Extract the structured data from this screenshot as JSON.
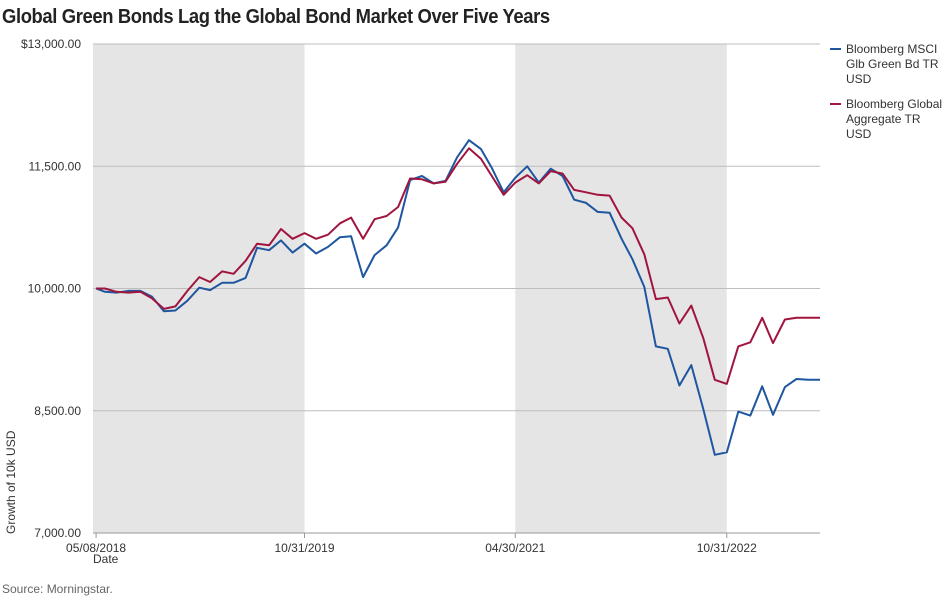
{
  "title": "Global Green Bonds Lag the Global Bond Market Over Five Years",
  "source": "Source: Morningstar.",
  "colors": {
    "green_bond": "#1f56a0",
    "aggregate": "#a0153e",
    "shade": "#e5e5e5",
    "grid": "#bdbdbd"
  },
  "chart_data": {
    "type": "line",
    "ylabel": "Growth of 10k USD",
    "xlabel": "Date",
    "ylim": [
      7000,
      13000
    ],
    "y_ticks": [
      7000,
      8500,
      10000,
      11500,
      13000
    ],
    "y_tick_labels": [
      "7,000.00",
      "8,500.00",
      "10,000.00",
      "11,500.00",
      "$13,000.00"
    ],
    "x_tick_labels": [
      "05/08/2018",
      "10/31/2019",
      "04/30/2021",
      "10/31/2022"
    ],
    "x_ticks": [
      "2018-05-08",
      "2019-10-31",
      "2021-04-30",
      "2022-10-31"
    ],
    "x_range": [
      "2018-04-30",
      "2023-06-30"
    ],
    "shaded_periods": [
      [
        "2018-04-30",
        "2019-10-31"
      ],
      [
        "2021-04-30",
        "2022-10-31"
      ]
    ],
    "grid": "horizontal",
    "legend_position": "right",
    "x": [
      "2018-05-08",
      "2018-05-31",
      "2018-06-30",
      "2018-07-31",
      "2018-08-31",
      "2018-09-30",
      "2018-10-31",
      "2018-11-30",
      "2018-12-31",
      "2019-01-31",
      "2019-02-28",
      "2019-03-31",
      "2019-04-30",
      "2019-05-31",
      "2019-06-30",
      "2019-07-31",
      "2019-08-31",
      "2019-09-30",
      "2019-10-31",
      "2019-11-30",
      "2019-12-31",
      "2020-01-31",
      "2020-02-29",
      "2020-03-31",
      "2020-04-30",
      "2020-05-31",
      "2020-06-30",
      "2020-07-31",
      "2020-08-31",
      "2020-09-30",
      "2020-10-31",
      "2020-11-30",
      "2020-12-31",
      "2021-01-31",
      "2021-02-28",
      "2021-03-31",
      "2021-04-30",
      "2021-05-31",
      "2021-06-30",
      "2021-07-31",
      "2021-08-31",
      "2021-09-30",
      "2021-10-31",
      "2021-11-30",
      "2021-12-31",
      "2022-01-31",
      "2022-02-28",
      "2022-03-31",
      "2022-04-30",
      "2022-05-31",
      "2022-06-30",
      "2022-07-31",
      "2022-08-31",
      "2022-09-30",
      "2022-10-31",
      "2022-11-30",
      "2022-12-31",
      "2023-01-31",
      "2023-02-28",
      "2023-03-31",
      "2023-04-30",
      "2023-05-31",
      "2023-06-30"
    ],
    "series": [
      {
        "name": "Bloomberg MSCI Glb Green Bd TR USD",
        "color": "#1f56a0",
        "values": [
          10000,
          9960,
          9950,
          9970,
          9970,
          9900,
          9720,
          9730,
          9850,
          10010,
          9980,
          10070,
          10070,
          10130,
          10500,
          10470,
          10590,
          10440,
          10550,
          10430,
          10510,
          10630,
          10640,
          10140,
          10410,
          10530,
          10750,
          11330,
          11380,
          11290,
          11320,
          11610,
          11820,
          11710,
          11480,
          11180,
          11360,
          11500,
          11300,
          11470,
          11380,
          11090,
          11050,
          10940,
          10930,
          10610,
          10360,
          10020,
          9290,
          9260,
          8810,
          9060,
          8520,
          7960,
          7990,
          8490,
          8440,
          8800,
          8450,
          8790,
          8890,
          8880,
          8880
        ]
      },
      {
        "name": "Bloomberg Global Aggregate TR USD",
        "color": "#a0153e",
        "values": [
          10000,
          10000,
          9960,
          9950,
          9960,
          9880,
          9750,
          9780,
          9970,
          10140,
          10080,
          10210,
          10180,
          10340,
          10550,
          10530,
          10730,
          10610,
          10680,
          10610,
          10660,
          10800,
          10870,
          10610,
          10850,
          10890,
          11000,
          11350,
          11340,
          11290,
          11310,
          11530,
          11720,
          11590,
          11380,
          11150,
          11300,
          11390,
          11290,
          11440,
          11410,
          11210,
          11180,
          11150,
          11140,
          10870,
          10740,
          10420,
          9870,
          9890,
          9570,
          9790,
          9390,
          8880,
          8830,
          9290,
          9340,
          9640,
          9330,
          9620,
          9640,
          9640,
          9640
        ]
      }
    ]
  }
}
